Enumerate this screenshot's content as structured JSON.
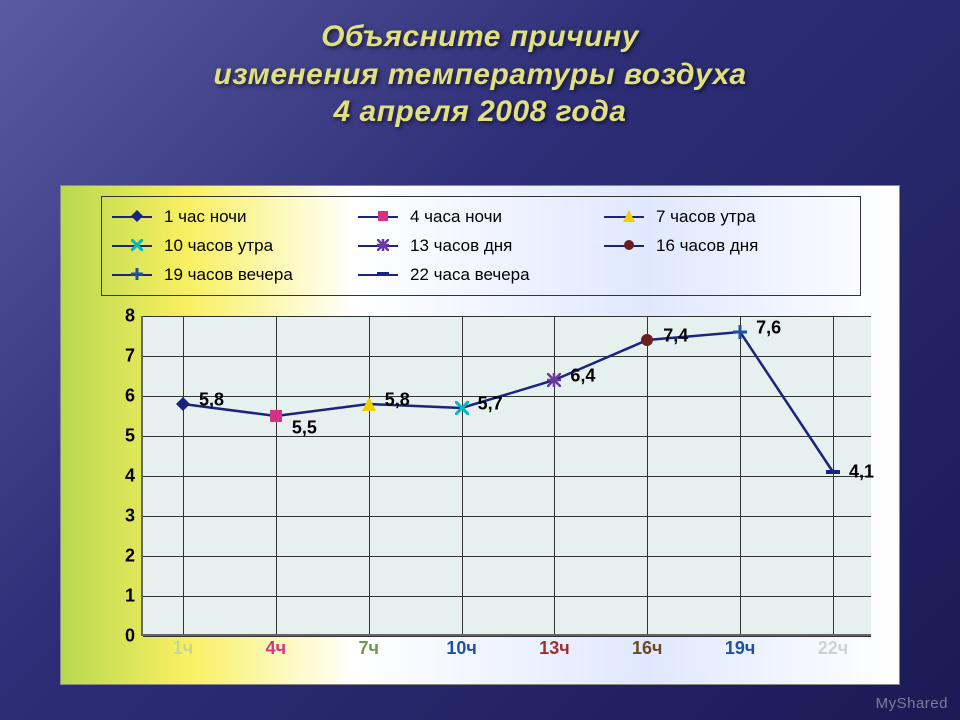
{
  "title": {
    "line1": "Объясните причину",
    "line2": "изменения температуры воздуха",
    "line3": "4 апреля 2008 года",
    "fontsize": 30,
    "color": "#e0e080"
  },
  "chart": {
    "type": "line",
    "background_color": "#e6f0ee",
    "line_color": "#1a237e",
    "line_width": 2.5,
    "ylim": [
      0,
      8
    ],
    "ytick_step": 1,
    "y_ticks": [
      0,
      1,
      2,
      3,
      4,
      5,
      6,
      7,
      8
    ],
    "grid_color": "#333333",
    "points": [
      {
        "x_index": 0,
        "label": "5,8",
        "value": 5.8,
        "marker": "diamond",
        "marker_color": "#1a237e",
        "marker_size": 14
      },
      {
        "x_index": 1,
        "label": "5,5",
        "value": 5.5,
        "marker": "square",
        "marker_color": "#d63384",
        "marker_size": 14
      },
      {
        "x_index": 2,
        "label": "5,8",
        "value": 5.8,
        "marker": "triangle",
        "marker_color": "#f0d000",
        "marker_size": 14
      },
      {
        "x_index": 3,
        "label": "5,7",
        "value": 5.7,
        "marker": "x",
        "marker_color": "#00b8c4",
        "marker_size": 14
      },
      {
        "x_index": 4,
        "label": "6,4",
        "value": 6.4,
        "marker": "asterisk",
        "marker_color": "#6a3aa0",
        "marker_size": 14
      },
      {
        "x_index": 5,
        "label": "7,4",
        "value": 7.4,
        "marker": "circle",
        "marker_color": "#6b2020",
        "marker_size": 14
      },
      {
        "x_index": 6,
        "label": "7,6",
        "value": 7.6,
        "marker": "plus",
        "marker_color": "#2050a0",
        "marker_size": 14
      },
      {
        "x_index": 7,
        "label": "4,1",
        "value": 4.1,
        "marker": "dash",
        "marker_color": "#1a237e",
        "marker_size": 14
      }
    ],
    "x_categories": [
      {
        "label": "1ч",
        "color": "#c0d8a0"
      },
      {
        "label": "4ч",
        "color": "#d63384"
      },
      {
        "label": "7ч",
        "color": "#6a9a4a"
      },
      {
        "label": "10ч",
        "color": "#2050a0"
      },
      {
        "label": "13ч",
        "color": "#a03030"
      },
      {
        "label": "16ч",
        "color": "#6b4a20"
      },
      {
        "label": "19ч",
        "color": "#2050a0"
      },
      {
        "label": "22ч",
        "color": "#d0d0d0"
      }
    ]
  },
  "legend": {
    "items": [
      {
        "marker": "diamond",
        "color": "#1a237e",
        "text": "1 час ночи"
      },
      {
        "marker": "square",
        "color": "#d63384",
        "text": "4 часа ночи"
      },
      {
        "marker": "triangle",
        "color": "#f0d000",
        "text": "7 часов утра"
      },
      {
        "marker": "x",
        "color": "#00b8c4",
        "text": "10 часов утра"
      },
      {
        "marker": "asterisk",
        "color": "#6a3aa0",
        "text": "13 часов дня"
      },
      {
        "marker": "circle",
        "color": "#6b2020",
        "text": "16 часов дня"
      },
      {
        "marker": "plus",
        "color": "#2050a0",
        "text": "19 часов вечера"
      },
      {
        "marker": "dash",
        "color": "#1a237e",
        "text": "22 часа вечера"
      }
    ],
    "fontsize": 17
  },
  "watermark": "MyShared"
}
